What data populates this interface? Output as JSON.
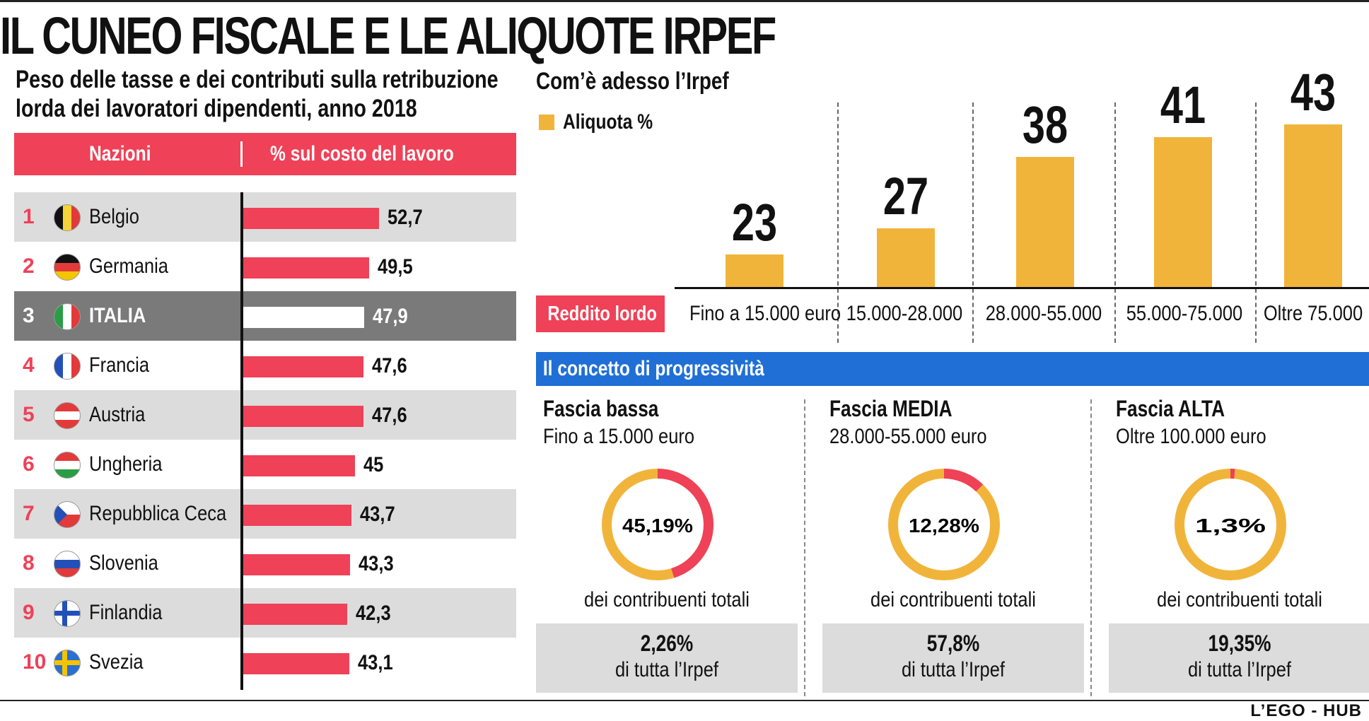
{
  "title": "IL CUNEO FISCALE E LE ALIQUOTE IRPEF",
  "left": {
    "subtitle": "Peso delle tasse e dei contributi sulla retribuzione lorda dei lavoratori dipendenti, anno 2018",
    "col_country": "Nazioni",
    "col_value": "% sul costo del lavoro"
  },
  "right": {
    "title": "Com’è adesso l’Irpef",
    "legend": "Aliquota %",
    "reddito_label": "Reddito lordo",
    "bands": [
      "Fino a 15.000 euro",
      "15.000-28.000",
      "28.000-55.000",
      "55.000-75.000",
      "Oltre 75.000"
    ],
    "prog_title": "Il concetto di progressività",
    "fasce": [
      {
        "name": "Fascia bassa",
        "range": "Fino a 15.000 euro",
        "pct": "45,19%",
        "pct_value": 45.19,
        "contrib": "dei contribuenti totali",
        "irpef_pct": "2,26%",
        "irpef_lbl": "di tutta l’Irpef"
      },
      {
        "name": "Fascia MEDIA",
        "range": "28.000-55.000 euro",
        "pct": "12,28%",
        "pct_value": 12.28,
        "contrib": "dei contribuenti totali",
        "irpef_pct": "57,8%",
        "irpef_lbl": "di tutta l’Irpef"
      },
      {
        "name": "Fascia ALTA",
        "range": "Oltre 100.000 euro",
        "pct": "1,3%",
        "pct_value": 1.3,
        "contrib": "dei contribuenti totali",
        "irpef_pct": "19,35%",
        "irpef_lbl": "di tutta l’Irpef"
      }
    ]
  },
  "credit": "L’EGO - HUB",
  "colors": {
    "red": "#ef4157",
    "orange": "#f1b43a",
    "blue": "#1f6fd6",
    "grey": "#dcdcdc",
    "dark_grey": "#7a7a7a"
  },
  "chart_data": [
    {
      "type": "bar",
      "title": "Peso delle tasse e dei contributi sulla retribuzione lorda dei lavoratori dipendenti, anno 2018",
      "ylabel": "% sul costo del lavoro",
      "categories": [
        "Belgio",
        "Germania",
        "ITALIA",
        "Francia",
        "Austria",
        "Ungheria",
        "Repubblica Ceca",
        "Slovenia",
        "Finlandia",
        "Svezia"
      ],
      "ranks": [
        "1",
        "2",
        "3",
        "4",
        "5",
        "6",
        "7",
        "8",
        "9",
        "10"
      ],
      "values": [
        52.7,
        49.5,
        47.9,
        47.6,
        47.6,
        45,
        43.7,
        43.3,
        42.3,
        43.1
      ],
      "labels": [
        "52,7",
        "49,5",
        "47,9",
        "47,6",
        "47,6",
        "45",
        "43,7",
        "43,3",
        "42,3",
        "43,1"
      ],
      "orientation": "horizontal"
    },
    {
      "type": "bar",
      "title": "Com’è adesso l’Irpef",
      "series": [
        {
          "name": "Aliquota %",
          "values": [
            23,
            27,
            38,
            41,
            43
          ]
        }
      ],
      "categories": [
        "Fino a 15.000 euro",
        "15.000-28.000",
        "28.000-55.000",
        "55.000-75.000",
        "Oltre 75.000"
      ],
      "xlabel": "Reddito lordo"
    },
    {
      "type": "pie",
      "title": "Il concetto di progressività",
      "categories": [
        "Fascia bassa",
        "Fascia MEDIA",
        "Fascia ALTA"
      ],
      "values": [
        45.19,
        12.28,
        1.3
      ],
      "unit": "% dei contribuenti totali"
    }
  ]
}
